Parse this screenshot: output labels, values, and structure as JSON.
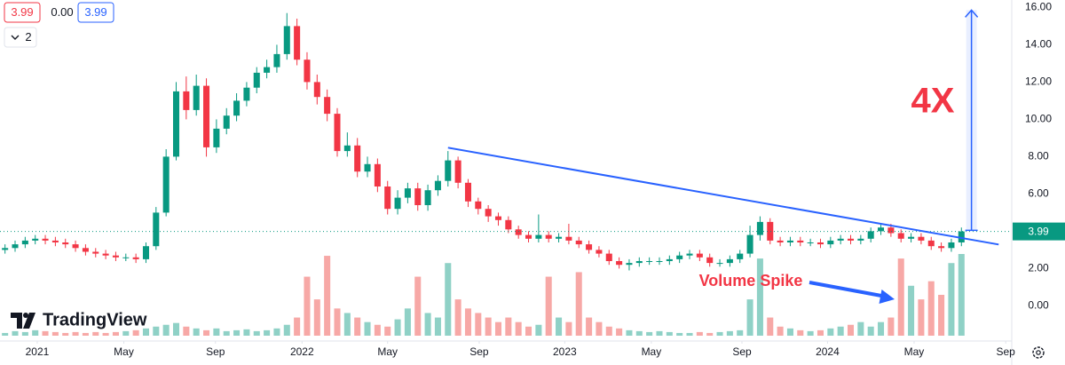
{
  "chart_data": {
    "type": "candlestick",
    "header": {
      "bid": 3.99,
      "spread": {
        "value": 0,
        "label": "0.00"
      },
      "ask": 3.99,
      "indicators": 2
    },
    "logo": "TradingView",
    "up_color": "#089981",
    "down_color": "#f23645",
    "volume_up_color": "#8fd1c6",
    "volume_down_color": "#f7a8a6",
    "open": [
      3.0,
      3.1,
      3.3,
      3.5,
      3.6,
      3.5,
      3.4,
      3.3,
      3.1,
      2.9,
      2.8,
      2.7,
      2.6,
      2.6,
      2.5,
      3.2,
      5.0,
      8.0,
      11.5,
      10.5,
      11.8,
      8.5,
      9.5,
      10.2,
      11.0,
      11.7,
      12.5,
      12.8,
      13.5,
      15.0,
      13.2,
      12.0,
      11.2,
      10.3,
      8.3,
      8.6,
      7.2,
      7.6,
      6.4,
      5.2,
      5.8,
      6.3,
      5.4,
      6.2,
      6.7,
      7.8,
      6.6,
      5.6,
      5.2,
      4.8,
      4.6,
      4.1,
      3.8,
      3.6,
      3.8,
      3.6,
      3.7,
      3.5,
      3.3,
      3.0,
      2.8,
      2.4,
      2.2,
      2.3,
      2.4,
      2.4,
      2.4,
      2.5,
      2.7,
      2.8,
      2.6,
      2.3,
      2.3,
      2.5,
      2.8,
      3.8,
      4.5,
      3.5,
      3.4,
      3.5,
      3.4,
      3.4,
      3.3,
      3.5,
      3.6,
      3.5,
      3.6,
      4.0,
      4.2,
      3.9,
      3.6,
      3.7,
      3.5,
      3.2,
      3.1,
      3.4
    ],
    "high": [
      3.3,
      3.5,
      3.7,
      3.8,
      3.8,
      3.7,
      3.6,
      3.5,
      3.3,
      3.1,
      3.0,
      2.9,
      2.8,
      2.8,
      3.4,
      5.3,
      8.4,
      12.0,
      12.3,
      12.4,
      12.2,
      10.0,
      10.6,
      11.4,
      12.0,
      12.8,
      13.2,
      14.0,
      15.7,
      15.4,
      13.6,
      12.4,
      11.6,
      10.6,
      9.3,
      9.0,
      8.0,
      7.9,
      6.7,
      6.2,
      6.6,
      6.6,
      6.5,
      7.0,
      8.3,
      8.0,
      6.8,
      5.8,
      5.4,
      5.0,
      4.8,
      4.3,
      4.0,
      4.9,
      4.0,
      3.9,
      4.4,
      3.7,
      3.5,
      3.2,
      3.0,
      2.6,
      2.5,
      2.6,
      2.6,
      2.6,
      2.7,
      2.9,
      3.0,
      3.0,
      2.8,
      2.5,
      2.7,
      3.0,
      4.3,
      4.8,
      4.7,
      3.7,
      3.7,
      3.7,
      3.6,
      3.6,
      3.7,
      3.8,
      3.8,
      3.8,
      4.2,
      4.4,
      4.4,
      4.1,
      3.9,
      3.9,
      3.7,
      3.4,
      3.6,
      4.2
    ],
    "low": [
      2.8,
      2.9,
      3.1,
      3.3,
      3.3,
      3.2,
      3.1,
      2.9,
      2.7,
      2.6,
      2.5,
      2.4,
      2.4,
      2.3,
      2.3,
      3.0,
      4.8,
      7.8,
      10.0,
      10.2,
      8.0,
      8.2,
      9.2,
      9.9,
      10.7,
      11.4,
      12.2,
      12.5,
      13.2,
      12.9,
      11.6,
      10.8,
      9.9,
      8.0,
      8.0,
      6.9,
      6.9,
      6.1,
      4.9,
      4.9,
      5.5,
      5.1,
      5.1,
      5.9,
      6.4,
      6.3,
      5.3,
      4.9,
      4.5,
      4.3,
      3.9,
      3.6,
      3.4,
      3.4,
      3.4,
      3.4,
      3.3,
      3.1,
      2.8,
      2.6,
      2.2,
      2.0,
      1.9,
      2.1,
      2.2,
      2.2,
      2.2,
      2.3,
      2.5,
      2.4,
      2.1,
      2.1,
      2.1,
      2.3,
      2.6,
      3.5,
      3.3,
      3.2,
      3.2,
      3.2,
      3.2,
      3.1,
      3.1,
      3.3,
      3.3,
      3.3,
      3.4,
      3.8,
      3.7,
      3.4,
      3.4,
      3.3,
      3.0,
      2.9,
      2.9,
      3.2
    ],
    "close": [
      3.1,
      3.3,
      3.5,
      3.6,
      3.5,
      3.4,
      3.3,
      3.1,
      2.9,
      2.8,
      2.7,
      2.6,
      2.6,
      2.5,
      3.2,
      5.0,
      8.0,
      11.5,
      10.5,
      11.8,
      8.5,
      9.5,
      10.2,
      11.0,
      11.7,
      12.5,
      12.8,
      13.5,
      15.0,
      13.2,
      12.0,
      11.2,
      10.3,
      8.3,
      8.6,
      7.2,
      7.6,
      6.4,
      5.2,
      5.8,
      6.3,
      5.4,
      6.2,
      6.7,
      7.8,
      6.6,
      5.6,
      5.2,
      4.8,
      4.6,
      4.1,
      3.8,
      3.6,
      3.8,
      3.6,
      3.7,
      3.5,
      3.3,
      3.0,
      2.8,
      2.4,
      2.2,
      2.3,
      2.4,
      2.4,
      2.4,
      2.5,
      2.7,
      2.8,
      2.6,
      2.3,
      2.3,
      2.5,
      2.8,
      3.8,
      4.5,
      3.5,
      3.4,
      3.5,
      3.4,
      3.4,
      3.3,
      3.5,
      3.6,
      3.5,
      3.6,
      4.0,
      4.2,
      3.9,
      3.6,
      3.7,
      3.5,
      3.2,
      3.1,
      3.4,
      3.99
    ],
    "volume": [
      3,
      5,
      4,
      6,
      5,
      4,
      3,
      4,
      3,
      4,
      3,
      4,
      5,
      6,
      8,
      10,
      12,
      14,
      10,
      8,
      6,
      8,
      5,
      6,
      7,
      5,
      6,
      8,
      12,
      20,
      65,
      40,
      88,
      30,
      25,
      20,
      15,
      12,
      10,
      18,
      30,
      65,
      25,
      20,
      80,
      40,
      30,
      25,
      20,
      15,
      20,
      15,
      10,
      12,
      65,
      20,
      15,
      70,
      20,
      15,
      10,
      8,
      6,
      5,
      4,
      5,
      4,
      3,
      3,
      4,
      3,
      4,
      5,
      6,
      40,
      85,
      20,
      10,
      8,
      6,
      5,
      6,
      8,
      10,
      12,
      15,
      10,
      15,
      20,
      85,
      55,
      40,
      60,
      45,
      80,
      90
    ],
    "xlim": [
      -0.5,
      100
    ],
    "xticks": [
      {
        "value": 3.2,
        "label": "2021"
      },
      {
        "value": 11.8,
        "label": "May"
      },
      {
        "value": 20.9,
        "label": "Sep"
      },
      {
        "value": 29.5,
        "label": "2022"
      },
      {
        "value": 38.0,
        "label": "May"
      },
      {
        "value": 47.1,
        "label": "Sep"
      },
      {
        "value": 55.6,
        "label": "2023"
      },
      {
        "value": 64.2,
        "label": "May"
      },
      {
        "value": 73.2,
        "label": "Sep"
      },
      {
        "value": 81.7,
        "label": "2024"
      },
      {
        "value": 90.3,
        "label": "May"
      },
      {
        "value": 99.4,
        "label": "Sep"
      }
    ],
    "ylim": [
      -1.6,
      16.4
    ],
    "yticks": [
      {
        "value": 0,
        "label": "0.00"
      },
      {
        "value": 2,
        "label": "2.00"
      },
      {
        "value": 6,
        "label": "6.00"
      },
      {
        "value": 8,
        "label": "8.00"
      },
      {
        "value": 10,
        "label": "10.00"
      },
      {
        "value": 12,
        "label": "12.00"
      },
      {
        "value": 14,
        "label": "14.00"
      },
      {
        "value": 16,
        "label": "16.00"
      }
    ],
    "grid": false,
    "last_price": 3.99,
    "trendline": {
      "x": [
        44,
        98.7
      ],
      "y": [
        8.48,
        3.29
      ],
      "color": "#2962ff"
    },
    "measure": {
      "x": 96,
      "from": 4.05,
      "to": 15.86,
      "color": "#2962ff"
    },
    "annotations": [
      {
        "text": "4X",
        "color": "#f23645"
      },
      {
        "text": "Volume Spike",
        "color": "#f23645"
      }
    ]
  }
}
